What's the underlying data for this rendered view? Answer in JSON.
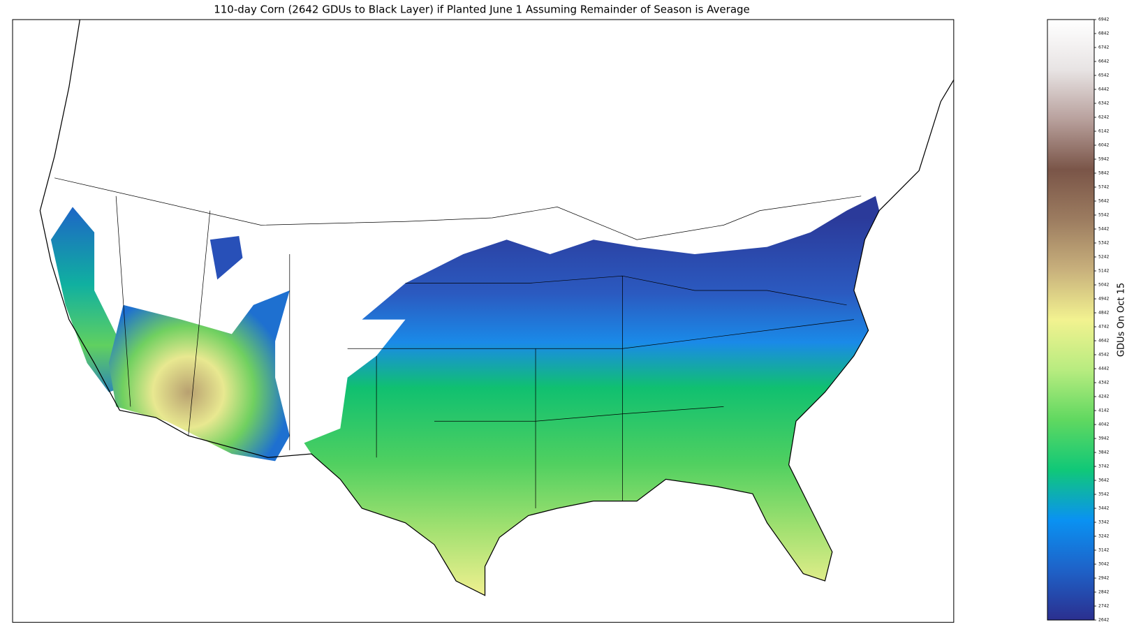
{
  "title": "110-day Corn (2642 GDUs to Black Layer) if Planted June 1 Assuming Remainder of Season is Average",
  "colorbar": {
    "label": "GDUs On Oct 15",
    "lim": [
      2642,
      6942
    ],
    "ticks": [
      2642,
      2742,
      2842,
      2942,
      3042,
      3142,
      3242,
      3342,
      3442,
      3542,
      3642,
      3742,
      3842,
      3942,
      4042,
      4142,
      4242,
      4342,
      4442,
      4542,
      4642,
      4742,
      4842,
      4942,
      5042,
      5142,
      5242,
      5342,
      5442,
      5542,
      5642,
      5742,
      5842,
      5942,
      6042,
      6142,
      6242,
      6342,
      6442,
      6542,
      6642,
      6742,
      6842,
      6942
    ],
    "colors": [
      "#2b2f8f",
      "#1e62c8",
      "#0a92f2",
      "#10c878",
      "#60d860",
      "#b8ec80",
      "#f2f290",
      "#c8b07c",
      "#9c7c60",
      "#7a5548",
      "#b8a09c",
      "#e8e4e4",
      "#ffffff"
    ]
  }
}
